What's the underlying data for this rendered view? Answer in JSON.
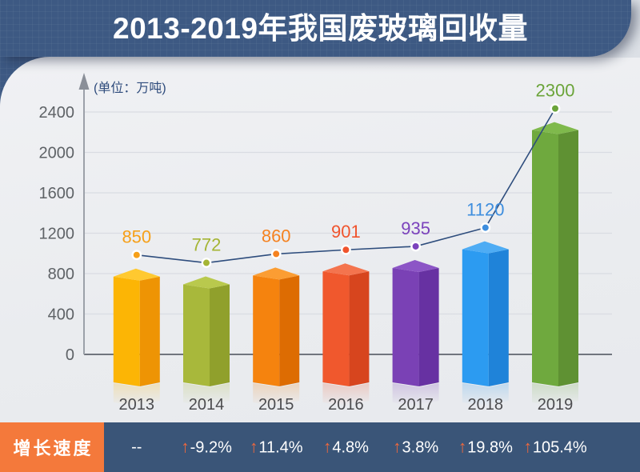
{
  "header": {
    "title": "2013-2019年我国废玻璃回收量"
  },
  "chart_data": {
    "type": "bar",
    "title": "2013-2019年我国废玻璃回收量",
    "unit_label": "(单位：万吨)",
    "categories": [
      "2013",
      "2014",
      "2015",
      "2016",
      "2017",
      "2018",
      "2019"
    ],
    "values": [
      850,
      772,
      860,
      901,
      935,
      1120,
      2300
    ],
    "value_labels": [
      "850",
      "772",
      "860",
      "901",
      "935",
      "1120",
      "2300"
    ],
    "yticks": [
      0,
      400,
      800,
      1200,
      1600,
      2000,
      2400
    ],
    "ylim": [
      0,
      2400
    ],
    "grid": true,
    "legend": "none",
    "overlay_line": {
      "type": "line",
      "color": "#2E4D7D",
      "values": [
        850,
        772,
        860,
        901,
        935,
        1120,
        2300
      ]
    },
    "series_colors": [
      {
        "front": "#FCB505",
        "side": "#EE9404",
        "top": "#FFC930",
        "accent": "#F6A019"
      },
      {
        "front": "#A8B83B",
        "side": "#90A02C",
        "top": "#B9C94D",
        "accent": "#A5B534"
      },
      {
        "front": "#F5830E",
        "side": "#DD6C02",
        "top": "#FB9D33",
        "accent": "#F58220"
      },
      {
        "front": "#F0582D",
        "side": "#D7451E",
        "top": "#F4744E",
        "accent": "#F0542D"
      },
      {
        "front": "#7A41B5",
        "side": "#6731A2",
        "top": "#8C55C6",
        "accent": "#7B42BC"
      },
      {
        "front": "#2C9BF1",
        "side": "#1F83D9",
        "top": "#4EACF4",
        "accent": "#3E8EDE"
      },
      {
        "front": "#6FA93E",
        "side": "#5F9133",
        "top": "#7FB94C",
        "accent": "#6BA43A"
      }
    ],
    "axis_color": "#9CA1A9",
    "gridline_color": "#D9DCE2",
    "zero_line_color": "#70757E",
    "tick_label_color": "#5E6266",
    "year_label_color": "#4B4B4E",
    "unit_label_color": "#2E4B7C"
  },
  "growth": {
    "label": "增长速度",
    "arrow_color": "#F2683C",
    "values": [
      {
        "arrow": false,
        "text": "--"
      },
      {
        "arrow": true,
        "text": "-9.2%"
      },
      {
        "arrow": true,
        "text": "11.4%"
      },
      {
        "arrow": true,
        "text": "4.8%"
      },
      {
        "arrow": true,
        "text": "3.8%"
      },
      {
        "arrow": true,
        "text": "19.8%"
      },
      {
        "arrow": true,
        "text": "105.4%"
      }
    ]
  },
  "colors": {
    "header_bg": "#3D5983",
    "card_bg": "#EAECEF",
    "growth_bar_bg": "#3A5578",
    "growth_label_bg": "#F4793B",
    "trend_line": "#2E4D7D"
  }
}
